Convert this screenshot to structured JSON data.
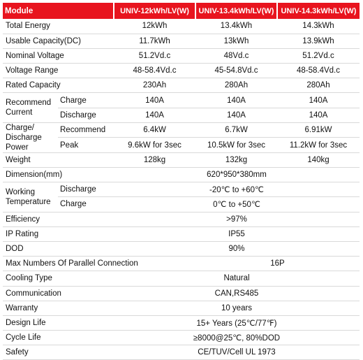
{
  "header": {
    "module": "Module",
    "models": [
      "UNIV-12kWh/LV(W)",
      "UNIV-13.4kWh/LV(W)",
      "UNIV-14.3kWh/LV(W)"
    ]
  },
  "rows": {
    "total_energy": {
      "label": "Total Energy",
      "values": [
        "12kWh",
        "13.4kWh",
        "14.3kWh"
      ]
    },
    "usable_capacity": {
      "label": "Usable Capacity(DC)",
      "values": [
        "11.7kWh",
        "13kWh",
        "13.9kWh"
      ]
    },
    "nominal_voltage": {
      "label": "Nominal Voltage",
      "values": [
        "51.2Vd.c",
        "48Vd.c",
        "51.2Vd.c"
      ]
    },
    "voltage_range": {
      "label": "Voltage Range",
      "values": [
        "48-58.4Vd.c",
        "45-54.8Vd.c",
        "48-58.4Vd.c"
      ]
    },
    "rated_capacity": {
      "label": "Rated Capacity",
      "values": [
        "230Ah",
        "280Ah",
        "280Ah"
      ]
    },
    "recommend_current": {
      "label": "Recommend Current",
      "charge": {
        "label": "Charge",
        "values": [
          "140A",
          "140A",
          "140A"
        ]
      },
      "discharge": {
        "label": "Discharge",
        "values": [
          "140A",
          "140A",
          "140A"
        ]
      }
    },
    "charge_discharge_power": {
      "label": "Charge/ Discharge Power",
      "recommend": {
        "label": "Recommend",
        "values": [
          "6.4kW",
          "6.7kW",
          "6.91kW"
        ]
      },
      "peak": {
        "label": "Peak",
        "values": [
          "9.6kW for 3sec",
          "10.5kW for 3sec",
          "11.2kW for 3sec"
        ]
      }
    },
    "weight": {
      "label": "Weight",
      "values": [
        "128kg",
        "132kg",
        "140kg"
      ]
    },
    "dimension": {
      "label": "Dimension(mm)",
      "value": "620*950*380mm"
    },
    "working_temperature": {
      "label": "Working Temperature",
      "discharge": {
        "label": "Discharge",
        "value": "-20℃ to +60℃"
      },
      "charge": {
        "label": "Charge",
        "value": "0℃ to +50℃"
      }
    },
    "efficiency": {
      "label": "Efficiency",
      "value": ">97%"
    },
    "ip_rating": {
      "label": "IP Rating",
      "value": "IP55"
    },
    "dod": {
      "label": "DOD",
      "value": "90%"
    },
    "parallel": {
      "label": "Max Numbers Of Parallel Connection",
      "value": "16P"
    },
    "cooling": {
      "label": "Cooling Type",
      "value": "Natural"
    },
    "communication": {
      "label": "Communication",
      "value": "CAN,RS485"
    },
    "warranty": {
      "label": "Warranty",
      "value": "10 years"
    },
    "design_life": {
      "label": "Design Life",
      "value": "15+ Years (25℃/77℉)"
    },
    "cycle_life": {
      "label": "Cycle Life",
      "value": "≥8000@25℃, 80%DOD"
    },
    "safety": {
      "label": "Safety",
      "value": "CE/TUV/Cell UL 1973"
    }
  }
}
